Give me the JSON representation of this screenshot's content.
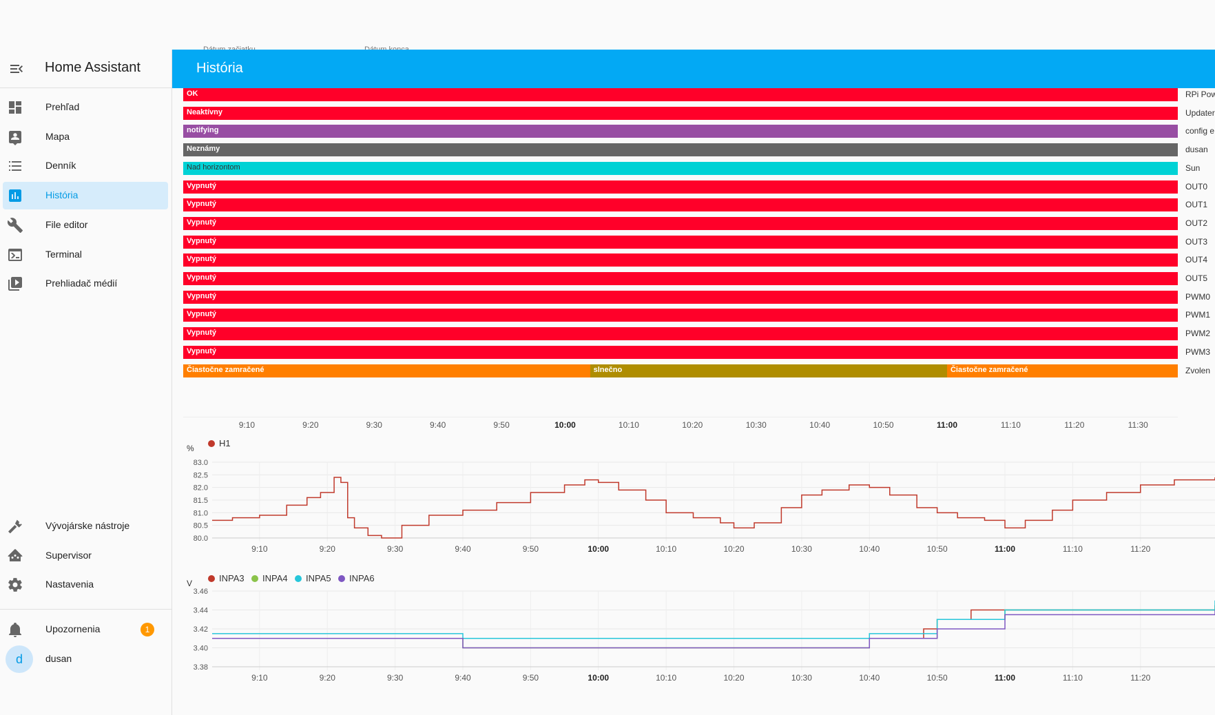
{
  "date_row": {
    "start_label": "Dátum začiatku",
    "end_label": "Dátum konca"
  },
  "sidebar": {
    "title": "Home Assistant",
    "items": [
      {
        "label": "Prehľad",
        "icon": "dashboard-icon"
      },
      {
        "label": "Mapa",
        "icon": "map-person-icon"
      },
      {
        "label": "Denník",
        "icon": "list-icon"
      },
      {
        "label": "História",
        "icon": "chart-bar-icon",
        "active": true
      },
      {
        "label": "File editor",
        "icon": "wrench-icon"
      },
      {
        "label": "Terminal",
        "icon": "console-icon"
      },
      {
        "label": "Prehliadač médií",
        "icon": "play-box-multiple-icon"
      }
    ],
    "bottom_items": [
      {
        "label": "Vývojárske nástroje",
        "icon": "hammer-icon"
      },
      {
        "label": "Supervisor",
        "icon": "home-assistant-icon"
      },
      {
        "label": "Nastavenia",
        "icon": "cog-icon"
      }
    ],
    "notifications": {
      "label": "Upozornenia",
      "count": "1",
      "icon": "bell-icon"
    },
    "user": {
      "name": "dusan",
      "initial": "d"
    }
  },
  "header": {
    "title": "História"
  },
  "colors": {
    "red": "#ff0029",
    "purple": "#984ea3",
    "gray": "#666666",
    "cyan": "#00d2d5",
    "orange": "#ff7f00",
    "olive": "#af8d00",
    "header": "#03a9f4"
  },
  "timeline": {
    "rows": [
      {
        "name": "RPi Pow",
        "segments": [
          {
            "label": "OK",
            "color": "red",
            "from": 0,
            "to": 1
          }
        ]
      },
      {
        "name": "Updater",
        "segments": [
          {
            "label": "Neaktívny",
            "color": "red",
            "from": 0,
            "to": 1
          }
        ]
      },
      {
        "name": "config e",
        "segments": [
          {
            "label": "notifying",
            "color": "purple",
            "from": 0,
            "to": 1
          }
        ]
      },
      {
        "name": "dusan",
        "segments": [
          {
            "label": "Neznámy",
            "color": "gray",
            "from": 0,
            "to": 1
          }
        ]
      },
      {
        "name": "Sun",
        "segments": [
          {
            "label": "Nad horizontom",
            "color": "cyan",
            "from": 0,
            "to": 1,
            "dark": true
          }
        ]
      },
      {
        "name": "OUT0",
        "segments": [
          {
            "label": "Vypnutý",
            "color": "red",
            "from": 0,
            "to": 1
          }
        ]
      },
      {
        "name": "OUT1",
        "segments": [
          {
            "label": "Vypnutý",
            "color": "red",
            "from": 0,
            "to": 1
          }
        ]
      },
      {
        "name": "OUT2",
        "segments": [
          {
            "label": "Vypnutý",
            "color": "red",
            "from": 0,
            "to": 1
          }
        ]
      },
      {
        "name": "OUT3",
        "segments": [
          {
            "label": "Vypnutý",
            "color": "red",
            "from": 0,
            "to": 1
          }
        ]
      },
      {
        "name": "OUT4",
        "segments": [
          {
            "label": "Vypnutý",
            "color": "red",
            "from": 0,
            "to": 1
          }
        ]
      },
      {
        "name": "OUT5",
        "segments": [
          {
            "label": "Vypnutý",
            "color": "red",
            "from": 0,
            "to": 1
          }
        ]
      },
      {
        "name": "PWM0",
        "segments": [
          {
            "label": "Vypnutý",
            "color": "red",
            "from": 0,
            "to": 1
          }
        ]
      },
      {
        "name": "PWM1",
        "segments": [
          {
            "label": "Vypnutý",
            "color": "red",
            "from": 0,
            "to": 1
          }
        ]
      },
      {
        "name": "PWM2",
        "segments": [
          {
            "label": "Vypnutý",
            "color": "red",
            "from": 0,
            "to": 1
          }
        ]
      },
      {
        "name": "PWM3",
        "segments": [
          {
            "label": "Vypnutý",
            "color": "red",
            "from": 0,
            "to": 1
          }
        ]
      },
      {
        "name": "Zvolen",
        "segments": [
          {
            "label": "Čiastočne zamračené",
            "color": "orange",
            "from": 0,
            "to": 0.409
          },
          {
            "label": "slnečno",
            "color": "olive",
            "from": 0.409,
            "to": 0.768
          },
          {
            "label": "Čiastočne zamračené",
            "color": "orange",
            "from": 0.768,
            "to": 1
          }
        ]
      }
    ],
    "ticks": [
      {
        "label": "9:10",
        "pos": 0.064
      },
      {
        "label": "9:20",
        "pos": 0.128
      },
      {
        "label": "9:30",
        "pos": 0.192
      },
      {
        "label": "9:40",
        "pos": 0.256
      },
      {
        "label": "9:50",
        "pos": 0.32
      },
      {
        "label": "10:00",
        "pos": 0.384,
        "major": true
      },
      {
        "label": "10:10",
        "pos": 0.448
      },
      {
        "label": "10:20",
        "pos": 0.512
      },
      {
        "label": "10:30",
        "pos": 0.576
      },
      {
        "label": "10:40",
        "pos": 0.64
      },
      {
        "label": "10:50",
        "pos": 0.704
      },
      {
        "label": "11:00",
        "pos": 0.768,
        "major": true
      },
      {
        "label": "11:10",
        "pos": 0.832
      },
      {
        "label": "11:20",
        "pos": 0.896
      },
      {
        "label": "11:30",
        "pos": 0.96
      }
    ]
  },
  "chart_data": [
    {
      "type": "line",
      "title": "",
      "ylabel": "%",
      "ylim": [
        80.0,
        83.0
      ],
      "yticks": [
        "83.0",
        "82.5",
        "82.0",
        "81.5",
        "81.0",
        "80.5",
        "80.0"
      ],
      "xticks": [
        "9:10",
        "9:20",
        "9:30",
        "9:40",
        "9:50",
        "10:00",
        "10:10",
        "10:20",
        "10:30",
        "10:40",
        "10:50",
        "11:00",
        "11:10",
        "11:20"
      ],
      "xticks_major": [
        "10:00",
        "11:00"
      ],
      "xrange": [
        "9:03",
        "11:31"
      ],
      "series": [
        {
          "name": "H1",
          "color": "#c0392b",
          "x": [
            "9:03",
            "9:06",
            "9:10",
            "9:14",
            "9:17",
            "9:19",
            "9:21",
            "9:22",
            "9:23",
            "9:24",
            "9:26",
            "9:28",
            "9:31",
            "9:35",
            "9:40",
            "9:45",
            "9:50",
            "9:55",
            "9:58",
            "10:00",
            "10:03",
            "10:07",
            "10:10",
            "10:14",
            "10:18",
            "10:20",
            "10:23",
            "10:27",
            "10:30",
            "10:33",
            "10:37",
            "10:40",
            "10:43",
            "10:47",
            "10:50",
            "10:53",
            "10:57",
            "11:00",
            "11:03",
            "11:07",
            "11:10",
            "11:15",
            "11:20",
            "11:25",
            "11:31"
          ],
          "values": [
            80.7,
            80.8,
            80.9,
            81.3,
            81.6,
            81.8,
            82.4,
            82.2,
            80.8,
            80.4,
            80.1,
            80.0,
            80.5,
            80.9,
            81.1,
            81.4,
            81.8,
            82.1,
            82.3,
            82.2,
            81.9,
            81.5,
            81.0,
            80.8,
            80.6,
            80.4,
            80.6,
            81.2,
            81.7,
            81.9,
            82.1,
            82.0,
            81.7,
            81.2,
            81.0,
            80.8,
            80.7,
            80.4,
            80.7,
            81.1,
            81.5,
            81.8,
            82.1,
            82.3,
            82.4
          ]
        }
      ]
    },
    {
      "type": "line",
      "title": "",
      "ylabel": "V",
      "ylim": [
        3.38,
        3.46
      ],
      "yticks": [
        "3.46",
        "3.44",
        "3.42",
        "3.40",
        "3.38"
      ],
      "xticks": [
        "9:10",
        "9:20",
        "9:30",
        "9:40",
        "9:50",
        "10:00",
        "10:10",
        "10:20",
        "10:30",
        "10:40",
        "10:50",
        "11:00",
        "11:10",
        "11:20"
      ],
      "xticks_major": [
        "10:00",
        "11:00"
      ],
      "xrange": [
        "9:03",
        "11:31"
      ],
      "series": [
        {
          "name": "INPA3",
          "color": "#c0392b",
          "x": [
            "9:03",
            "10:45",
            "10:48",
            "10:50",
            "10:55",
            "11:31"
          ],
          "values": [
            3.41,
            3.41,
            3.42,
            3.43,
            3.44,
            3.445
          ]
        },
        {
          "name": "INPA4",
          "color": "#8bc34a",
          "x": [
            "9:03",
            "9:40",
            "10:10",
            "10:40",
            "10:50",
            "11:00",
            "11:31"
          ],
          "values": [
            3.41,
            3.4,
            3.4,
            3.41,
            3.43,
            3.44,
            3.445
          ]
        },
        {
          "name": "INPA5",
          "color": "#26c6da",
          "x": [
            "9:03",
            "9:40",
            "10:10",
            "10:40",
            "10:50",
            "11:00",
            "11:31"
          ],
          "values": [
            3.415,
            3.41,
            3.41,
            3.415,
            3.43,
            3.44,
            3.45
          ]
        },
        {
          "name": "INPA6",
          "color": "#7e57c2",
          "x": [
            "9:03",
            "9:40",
            "10:10",
            "10:40",
            "10:50",
            "11:00",
            "11:31"
          ],
          "values": [
            3.41,
            3.4,
            3.4,
            3.41,
            3.42,
            3.435,
            3.44
          ]
        }
      ]
    }
  ]
}
